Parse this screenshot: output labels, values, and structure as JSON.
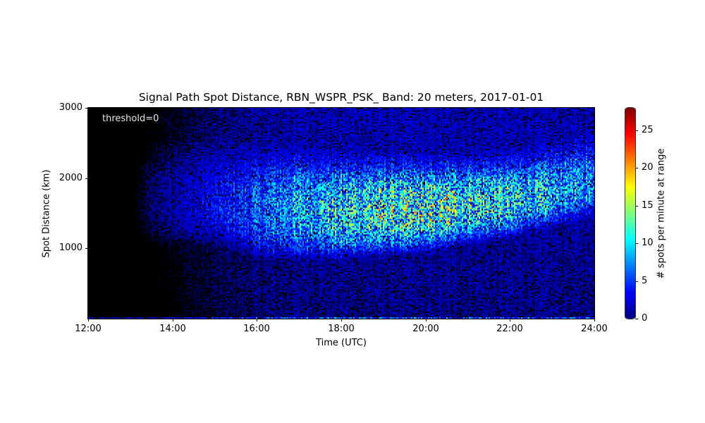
{
  "chart_data": {
    "type": "heatmap",
    "title": "Signal Path Spot Distance, RBN_WSPR_PSK_ Band: 20 meters, 2017-01-01",
    "xlabel": "Time (UTC)",
    "ylabel": "Spot Distance (km)",
    "colorbar_label": "# spots per minute at range",
    "annotation": "threshold=0",
    "colormap": "jet",
    "x_range": [
      "12:00",
      "24:00"
    ],
    "x_ticks": [
      "12:00",
      "14:00",
      "16:00",
      "18:00",
      "20:00",
      "22:00",
      "24:00"
    ],
    "y_range": [
      0,
      3000
    ],
    "y_ticks": [
      1000,
      2000,
      3000
    ],
    "color_range": [
      0,
      28
    ],
    "color_ticks": [
      0,
      5,
      10,
      15,
      20,
      25
    ],
    "grid": false,
    "description": "Per-minute spot counts vs distance. Near-zero before ~13:00. A broad band of elevated counts (~3-10 spots/min, peaks ~12) centered near 1500 km develops from ~15:00, strongest 18:00-22:00 between ~1000-2000 km; lower edge rises from ~950 km at 16:00 to ~1550 km at 24:00. Background ~1-3 spots/min elsewhere, thin line of activity near 0 km.",
    "band_model": {
      "start_hour": 13.0,
      "full_hour": 17.0,
      "center_km": [
        [
          12,
          1700
        ],
        [
          16,
          1500
        ],
        [
          18,
          1500
        ],
        [
          20,
          1550
        ],
        [
          22,
          1650
        ],
        [
          24,
          1900
        ]
      ],
      "lower_edge_km": [
        [
          15,
          1150
        ],
        [
          16.2,
          950
        ],
        [
          18,
          950
        ],
        [
          20,
          1050
        ],
        [
          22,
          1250
        ],
        [
          24,
          1550
        ]
      ],
      "upper_edge_km": [
        [
          15,
          2300
        ],
        [
          18,
          2150
        ],
        [
          20,
          2100
        ],
        [
          22,
          2150
        ],
        [
          24,
          2400
        ]
      ],
      "peak_value": 11,
      "background_value": 1.8
    }
  },
  "colorbar": {
    "stops": [
      "#00007f",
      "#0000ff",
      "#007fff",
      "#00ffff",
      "#7fff7f",
      "#ffff00",
      "#ff7f00",
      "#ff0000",
      "#7f0000"
    ]
  }
}
